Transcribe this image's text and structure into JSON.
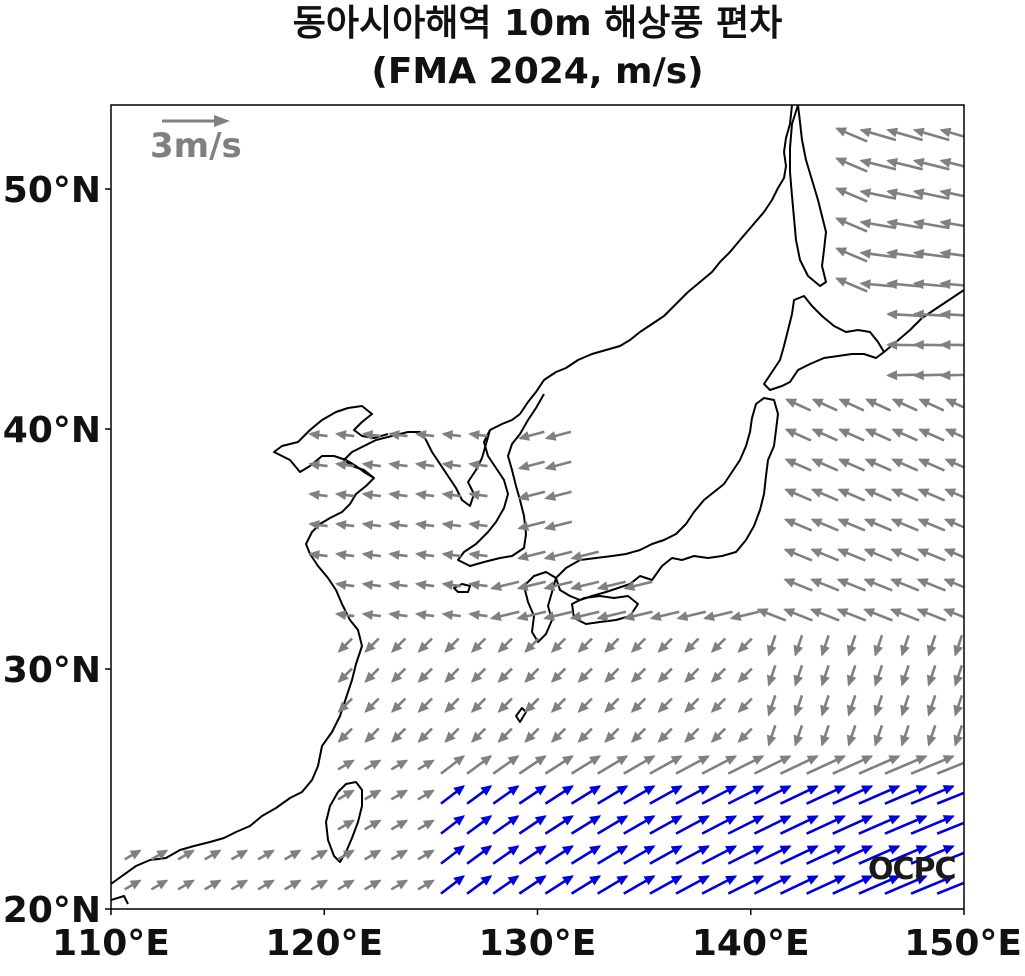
{
  "title": {
    "line1": "동아시아해역 10m 해상풍 편차",
    "line2": "(FMA 2024, m/s)"
  },
  "axes": {
    "x_ticks": [
      "110°E",
      "120°E",
      "130°E",
      "140°E",
      "150°E"
    ],
    "y_ticks": [
      "50°N",
      "40°N",
      "30°N",
      "20°N"
    ],
    "lon_range": [
      110,
      150
    ],
    "lat_range": [
      20,
      53.5
    ]
  },
  "reference_vector": {
    "label": "3m/s",
    "magnitude": 3,
    "color": "#808080"
  },
  "logo": "OCPC",
  "colors": {
    "normal_vector": "#808080",
    "strong_vector": "#0000dd",
    "coast": "#000000"
  }
}
